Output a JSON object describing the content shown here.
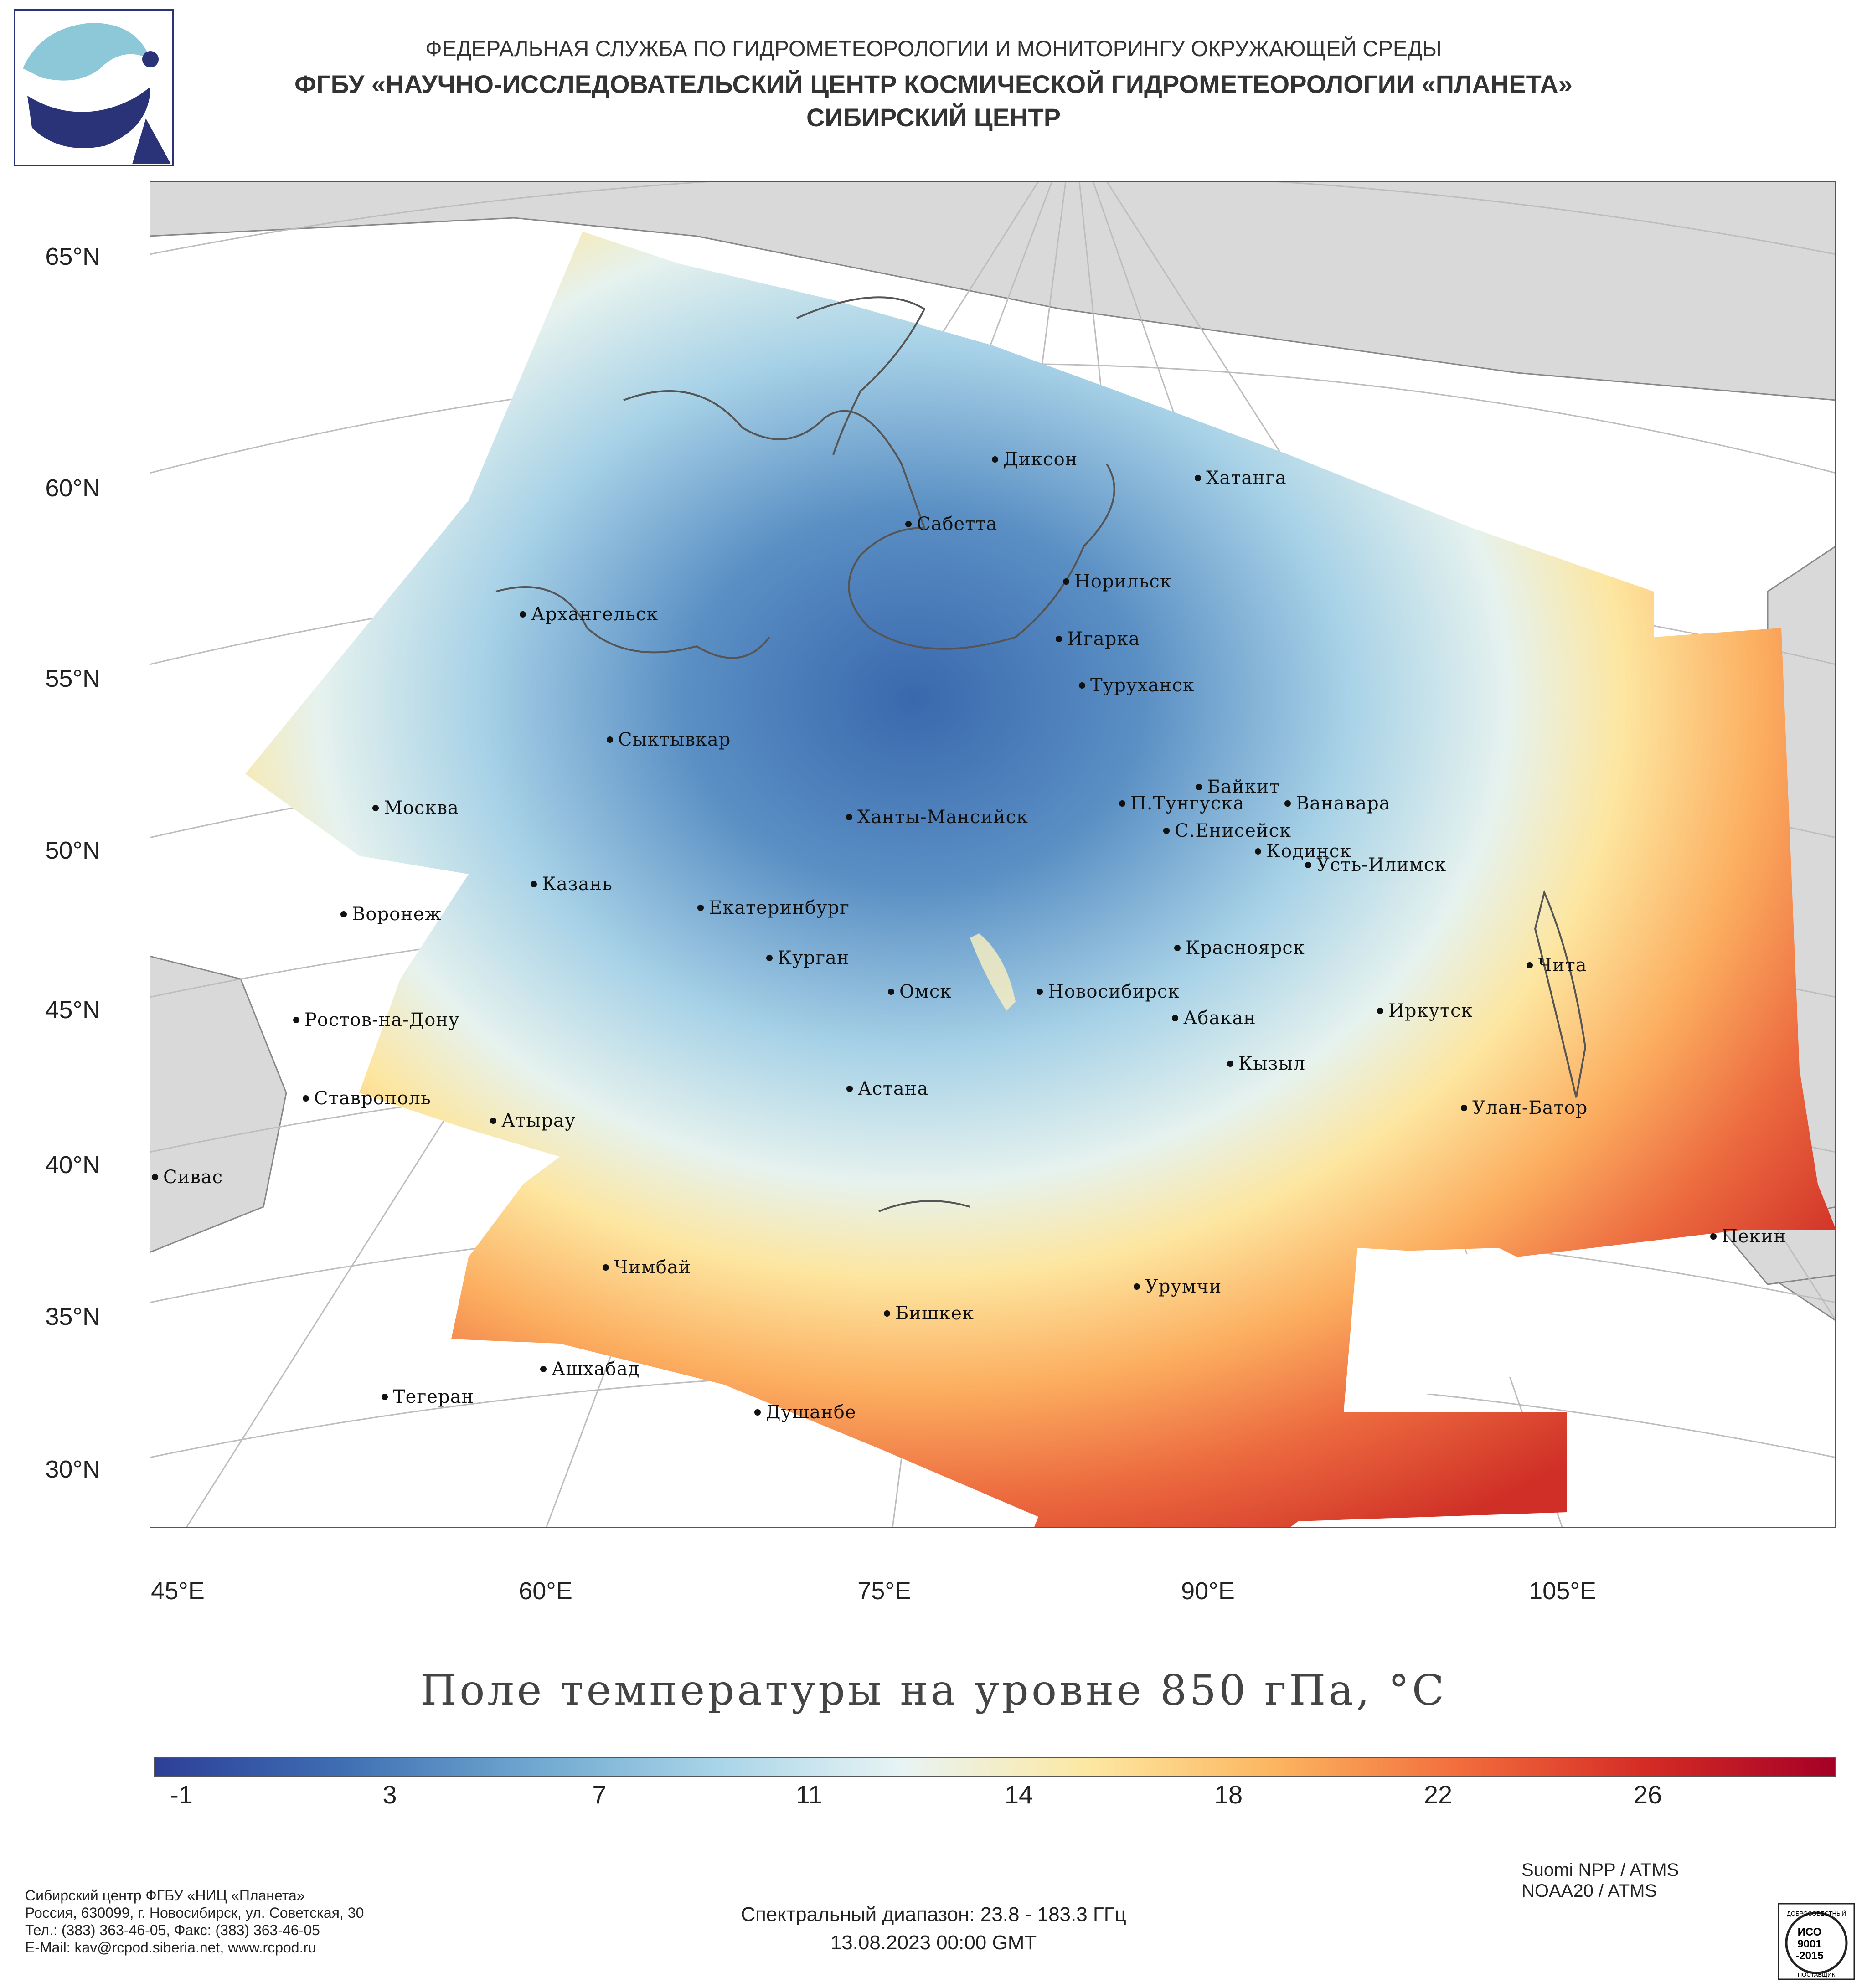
{
  "header": {
    "line1": "ФЕДЕРАЛЬНАЯ СЛУЖБА ПО ГИДРОМЕТЕОРОЛОГИИ И МОНИТОРИНГУ ОКРУЖАЮЩЕЙ СРЕДЫ",
    "line2": "ФГБУ «НАУЧНО-ИССЛЕДОВАТЕЛЬСКИЙ ЦЕНТР КОСМИЧЕСКОЙ ГИДРОМЕТЕОРОЛОГИИ «ПЛАНЕТА»",
    "line3": "СИБИРСКИЙ ЦЕНТР"
  },
  "map": {
    "lat_labels": [
      "65°N",
      "60°N",
      "55°N",
      "50°N",
      "45°N",
      "40°N",
      "35°N",
      "30°N"
    ],
    "lon_labels": [
      "45°E",
      "60°E",
      "75°E",
      "90°E",
      "105°E"
    ],
    "cities": [
      "Диксон",
      "Хатанга",
      "Сабетта",
      "Норильск",
      "Архангельск",
      "Игарка",
      "Туруханск",
      "Сыктывкар",
      "Байкит",
      "П.Тунгуска",
      "Ванавара",
      "Москва",
      "Ханты-Мансийск",
      "С.Енисейск",
      "Кодинск",
      "Усть-Илимск",
      "Казань",
      "Екатеринбург",
      "Воронеж",
      "Красноярск",
      "Курган",
      "Чита",
      "Омск",
      "Новосибирск",
      "Иркутск",
      "Абакан",
      "Ростов-на-Дону",
      "Кызыл",
      "Астана",
      "Ставрополь",
      "Улан-Батор",
      "Атырау",
      "Сивас",
      "Пекин",
      "Чимбай",
      "Урумчи",
      "Бишкек",
      "Ашхабад",
      "Тегеран",
      "Душанбе"
    ],
    "colors": {
      "land": "#d9d9d9",
      "ocean": "#ffffff",
      "border": "#888888"
    }
  },
  "title": "Поле температуры на уровне 850 гПа, °C",
  "colorbar": {
    "labels": [
      "-1",
      "3",
      "7",
      "11",
      "14",
      "18",
      "22",
      "26"
    ],
    "stops": [
      "#2c3f98",
      "#3f6eb3",
      "#6ea6cf",
      "#a8d4e8",
      "#e8f4f4",
      "#fde8a2",
      "#fcb55f",
      "#f26c3c",
      "#d42b25",
      "#a50026"
    ]
  },
  "footer": {
    "left": [
      "Сибирский центр ФГБУ «НИЦ «Планета»",
      "Россия, 630099, г. Новосибирск, ул. Советская, 30",
      "Тел.: (383) 363-46-05, Факс: (383) 363-46-05",
      "E-Mail: kav@rcpod.siberia.net, www.rcpod.ru"
    ],
    "center": [
      "Спектральный диапазон: 23.8 - 183.3 ГГц",
      "13.08.2023 00:00 GMT"
    ],
    "right": [
      "Suomi NPP / ATMS",
      "NOAA20 / ATMS"
    ],
    "iso": {
      "top": "ДОБРОСОВЕСТНЫЙ",
      "l1": "ИСО",
      "l2": "9001",
      "l3": "-2015",
      "bottom": "ПОСТАВЩИК"
    }
  }
}
